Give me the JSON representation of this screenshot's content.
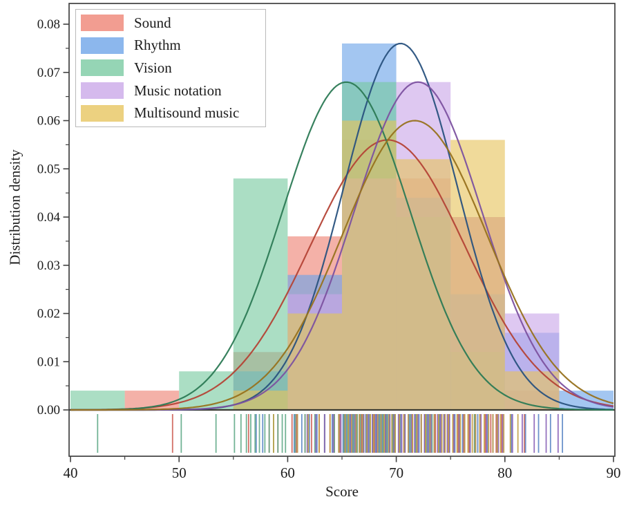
{
  "chart_data": {
    "type": "bar",
    "subtype": "overlaid-histograms-with-normal-density-curves-and-rug",
    "title": "",
    "xlabel": "Score",
    "ylabel": "Distribution density",
    "xlim": [
      40,
      90
    ],
    "ylim": [
      0,
      0.08
    ],
    "x_ticks": [
      40,
      50,
      60,
      70,
      80,
      90
    ],
    "x_minor_ticks": [
      45,
      55,
      65,
      75,
      85
    ],
    "y_ticks": [
      {
        "value": 0.0,
        "label": "0.00"
      },
      {
        "value": 0.01,
        "label": "0.01"
      },
      {
        "value": 0.02,
        "label": "0.02"
      },
      {
        "value": 0.03,
        "label": "0.03"
      },
      {
        "value": 0.04,
        "label": "0.04"
      },
      {
        "value": 0.05,
        "label": "0.05"
      },
      {
        "value": 0.06,
        "label": "0.06"
      },
      {
        "value": 0.07,
        "label": "0.07"
      },
      {
        "value": 0.08,
        "label": "0.08"
      }
    ],
    "y_minor_ticks": [
      0.005,
      0.015,
      0.025,
      0.035,
      0.045,
      0.055,
      0.065,
      0.075
    ],
    "grid": false,
    "legend_position": "upper-left",
    "bin_edges": [
      40,
      45,
      50,
      55,
      60,
      65,
      70,
      75,
      80,
      85,
      90
    ],
    "bin_width": 5,
    "bar_opacity": 0.62,
    "series": [
      {
        "name": "Sound",
        "fill": "#ee8172",
        "line": "#b44336",
        "rug_color": "#cd5f55",
        "bars": [
          0,
          0.004,
          0,
          0.012,
          0.036,
          0.056,
          0.048,
          0.04,
          0.004,
          0
        ],
        "curve": {
          "mean": 69.2,
          "sigma": 7.13,
          "peak": 0.056
        },
        "rug": [
          49.4,
          56.4,
          58.3,
          59.1,
          60.4,
          60.8,
          61.6,
          62.2,
          62.9,
          63.4,
          63.9,
          64.3,
          64.8,
          65.2,
          65.6,
          66.0,
          66.4,
          66.8,
          67.2,
          67.6,
          68.0,
          68.4,
          68.8,
          69.1,
          69.4,
          69.7,
          69.9,
          70.3,
          70.7,
          71.1,
          71.5,
          71.9,
          72.3,
          72.7,
          73.1,
          73.6,
          74.0,
          74.4,
          74.8,
          75.3,
          75.7,
          76.2,
          76.7,
          77.2,
          77.7,
          78.2,
          78.7,
          79.2,
          79.7,
          81.8
        ]
      },
      {
        "name": "Rhythm",
        "fill": "#6ba3e8",
        "line": "#29527e",
        "rug_color": "#5c87c5",
        "bars": [
          0,
          0,
          0,
          0.008,
          0.028,
          0.076,
          0.044,
          0.024,
          0.016,
          0.004
        ],
        "curve": {
          "mean": 70.4,
          "sigma": 5.25,
          "peak": 0.076
        },
        "rug": [
          57.1,
          57.7,
          60.6,
          61.3,
          62.0,
          62.7,
          63.4,
          64.1,
          64.7,
          65.1,
          65.4,
          65.7,
          66.0,
          66.3,
          66.6,
          66.9,
          67.2,
          67.5,
          67.8,
          68.1,
          68.4,
          68.7,
          69.0,
          69.2,
          69.4,
          69.6,
          69.8,
          69.9,
          70.4,
          70.8,
          71.2,
          71.7,
          72.1,
          72.6,
          73.0,
          73.5,
          74.0,
          74.4,
          74.9,
          75.4,
          76.1,
          76.8,
          77.5,
          78.4,
          79.3,
          80.6,
          81.9,
          83.1,
          84.2,
          85.3
        ]
      },
      {
        "name": "Vision",
        "fill": "#77c9a0",
        "line": "#2c7a55",
        "rug_color": "#63ab8a",
        "bars": [
          0.004,
          0,
          0.008,
          0.048,
          0.02,
          0.068,
          0.04,
          0.012,
          0,
          0
        ],
        "curve": {
          "mean": 65.4,
          "sigma": 5.87,
          "peak": 0.068
        },
        "rug": [
          42.5,
          50.2,
          53.4,
          55.1,
          55.7,
          56.2,
          56.6,
          57.0,
          57.4,
          57.9,
          58.3,
          58.7,
          59.1,
          59.5,
          59.8,
          60.7,
          61.6,
          62.5,
          63.4,
          64.3,
          65.2,
          65.5,
          65.8,
          66.1,
          66.4,
          66.7,
          67.0,
          67.3,
          67.6,
          67.9,
          68.2,
          68.5,
          68.8,
          69.1,
          69.4,
          69.7,
          69.9,
          70.3,
          70.8,
          71.3,
          71.8,
          72.3,
          72.8,
          73.3,
          73.9,
          74.4,
          74.9,
          75.8,
          77.2,
          78.9
        ]
      },
      {
        "name": "Music notation",
        "fill": "#c9a6e8",
        "line": "#7c52a0",
        "rug_color": "#8a63b8",
        "bars": [
          0,
          0,
          0,
          0,
          0.024,
          0.048,
          0.068,
          0.04,
          0.02,
          0
        ],
        "curve": {
          "mean": 72.0,
          "sigma": 5.87,
          "peak": 0.068
        },
        "rug": [
          60.9,
          61.8,
          62.6,
          63.4,
          64.2,
          64.9,
          65.3,
          65.8,
          66.2,
          66.6,
          67.0,
          67.4,
          67.8,
          68.2,
          68.6,
          69.0,
          69.4,
          69.8,
          70.2,
          70.5,
          70.8,
          71.1,
          71.4,
          71.7,
          72.0,
          72.3,
          72.6,
          72.9,
          73.2,
          73.5,
          73.8,
          74.1,
          74.4,
          74.7,
          74.9,
          75.3,
          75.8,
          76.3,
          76.8,
          77.3,
          77.8,
          78.3,
          78.9,
          79.4,
          79.8,
          80.7,
          81.6,
          82.7,
          83.8,
          84.9
        ]
      },
      {
        "name": "Multisound music",
        "fill": "#e7c45c",
        "line": "#97721d",
        "rug_color": "#c2a045",
        "bars": [
          0,
          0,
          0,
          0.004,
          0.02,
          0.06,
          0.052,
          0.056,
          0.008,
          0
        ],
        "curve": {
          "mean": 71.7,
          "sigma": 6.65,
          "peak": 0.06
        },
        "rug": [
          58.7,
          60.9,
          61.9,
          62.9,
          63.9,
          64.7,
          65.3,
          65.6,
          65.9,
          66.3,
          66.6,
          66.9,
          67.3,
          67.6,
          67.9,
          68.3,
          68.6,
          68.9,
          69.3,
          69.6,
          69.9,
          70.3,
          70.7,
          71.1,
          71.5,
          71.9,
          72.3,
          72.7,
          73.1,
          73.5,
          73.9,
          74.2,
          74.5,
          74.8,
          75.2,
          75.6,
          75.9,
          76.3,
          76.6,
          77.0,
          77.3,
          77.7,
          78.1,
          78.5,
          78.9,
          79.3,
          79.6,
          79.9,
          80.5,
          81.2
        ]
      }
    ]
  }
}
